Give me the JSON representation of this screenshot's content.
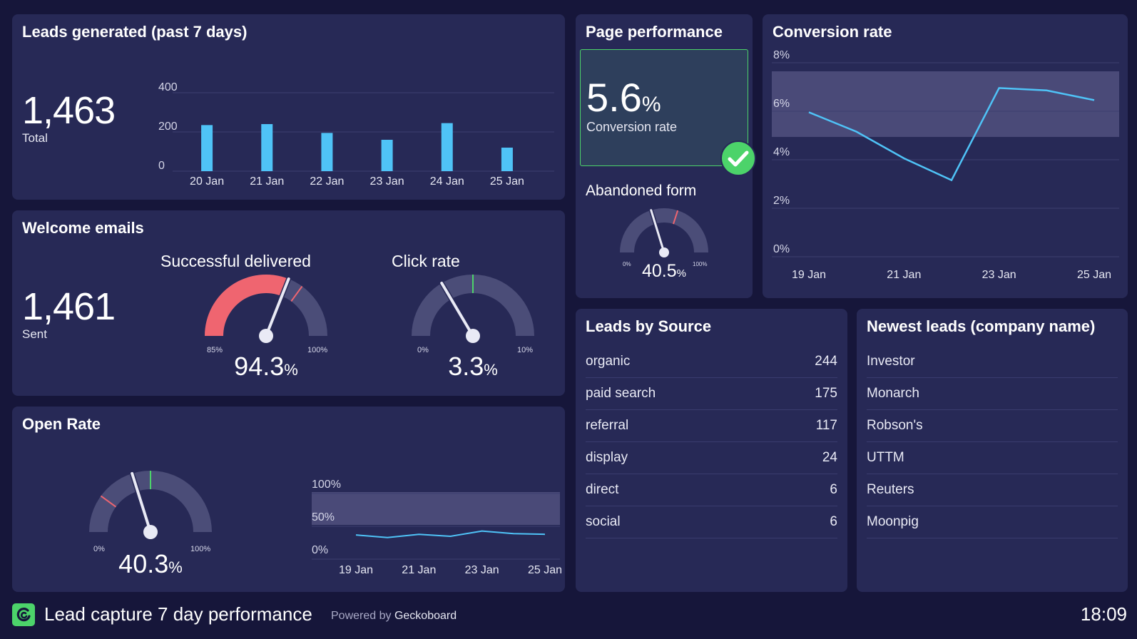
{
  "colors": {
    "background": "#16163a",
    "panel": "#272956",
    "bar_blue": "#4fc3f7",
    "gauge_red": "#ef6570",
    "gauge_grey": "#4b4d78",
    "good_green": "#4cd36a",
    "target_band": "#4a4a78"
  },
  "leads": {
    "title": "Leads generated (past 7 days)",
    "total_value": "1,463",
    "total_label": "Total",
    "chart_data": {
      "type": "bar",
      "categories": [
        "20 Jan",
        "21 Jan",
        "22 Jan",
        "23 Jan",
        "24 Jan",
        "25 Jan"
      ],
      "values": [
        235,
        240,
        195,
        160,
        245,
        120
      ],
      "ylim": [
        0,
        400
      ],
      "yticks": [
        "0",
        "200",
        "400"
      ],
      "grid": true
    }
  },
  "page_performance": {
    "title": "Page performance",
    "conversion_value": "5.6",
    "conversion_unit": "%",
    "conversion_label": "Conversion rate",
    "check_icon": "check-circle-icon",
    "abandoned_title": "Abandoned form",
    "abandoned_value": "40.5",
    "abandoned_unit": "%",
    "abandoned_min": "0%",
    "abandoned_max": "100%",
    "abandoned_fraction": 0.405
  },
  "conversion": {
    "title": "Conversion rate",
    "chart_data": {
      "type": "line",
      "x": [
        "19 Jan",
        "20 Jan",
        "21 Jan",
        "22 Jan",
        "23 Jan",
        "24 Jan",
        "25 Jan"
      ],
      "values": [
        5.9,
        5.1,
        4.0,
        3.1,
        6.9,
        6.8,
        6.4
      ],
      "ylim": [
        0,
        8
      ],
      "yticks": [
        "0%",
        "2%",
        "4%",
        "6%",
        "8%"
      ],
      "xticks": [
        "19 Jan",
        "21 Jan",
        "23 Jan",
        "25 Jan"
      ],
      "target_band": [
        5,
        8
      ],
      "grid": true
    }
  },
  "welcome": {
    "title": "Welcome emails",
    "sent_value": "1,461",
    "sent_label": "Sent",
    "delivered": {
      "title": "Successful delivered",
      "value": "94.3",
      "unit": "%",
      "min": "85%",
      "max": "100%",
      "fraction": 0.62
    },
    "click": {
      "title": "Click rate",
      "value": "3.3",
      "unit": "%",
      "min": "0%",
      "max": "10%",
      "fraction": 0.33
    }
  },
  "open_rate": {
    "title": "Open Rate",
    "value": "40.3",
    "unit": "%",
    "min": "0%",
    "max": "100%",
    "fraction": 0.403,
    "chart_data": {
      "type": "line",
      "x": [
        "19 Jan",
        "20 Jan",
        "21 Jan",
        "22 Jan",
        "23 Jan",
        "24 Jan",
        "25 Jan"
      ],
      "values": [
        39,
        35,
        40,
        37,
        45,
        41,
        40
      ],
      "ylim": [
        0,
        100
      ],
      "yticks": [
        "0%",
        "50%",
        "100%"
      ],
      "xticks": [
        "19 Jan",
        "21 Jan",
        "23 Jan",
        "25 Jan"
      ],
      "target_band": [
        50,
        100
      ]
    }
  },
  "sources": {
    "title": "Leads by Source",
    "rows": [
      {
        "name": "organic",
        "value": "244"
      },
      {
        "name": "paid search",
        "value": "175"
      },
      {
        "name": "referral",
        "value": "117"
      },
      {
        "name": "display",
        "value": "24"
      },
      {
        "name": "direct",
        "value": "6"
      },
      {
        "name": "social",
        "value": "6"
      }
    ]
  },
  "newest": {
    "title": "Newest leads (company name)",
    "rows": [
      "Investor",
      "Monarch",
      "Robson's",
      "UTTM",
      "Reuters",
      "Moonpig"
    ]
  },
  "footer": {
    "logo_icon": "geckoboard-logo-icon",
    "title": "Lead capture 7 day performance",
    "powered_prefix": "Powered by",
    "powered_brand": "Geckoboard",
    "time": "18:09"
  }
}
